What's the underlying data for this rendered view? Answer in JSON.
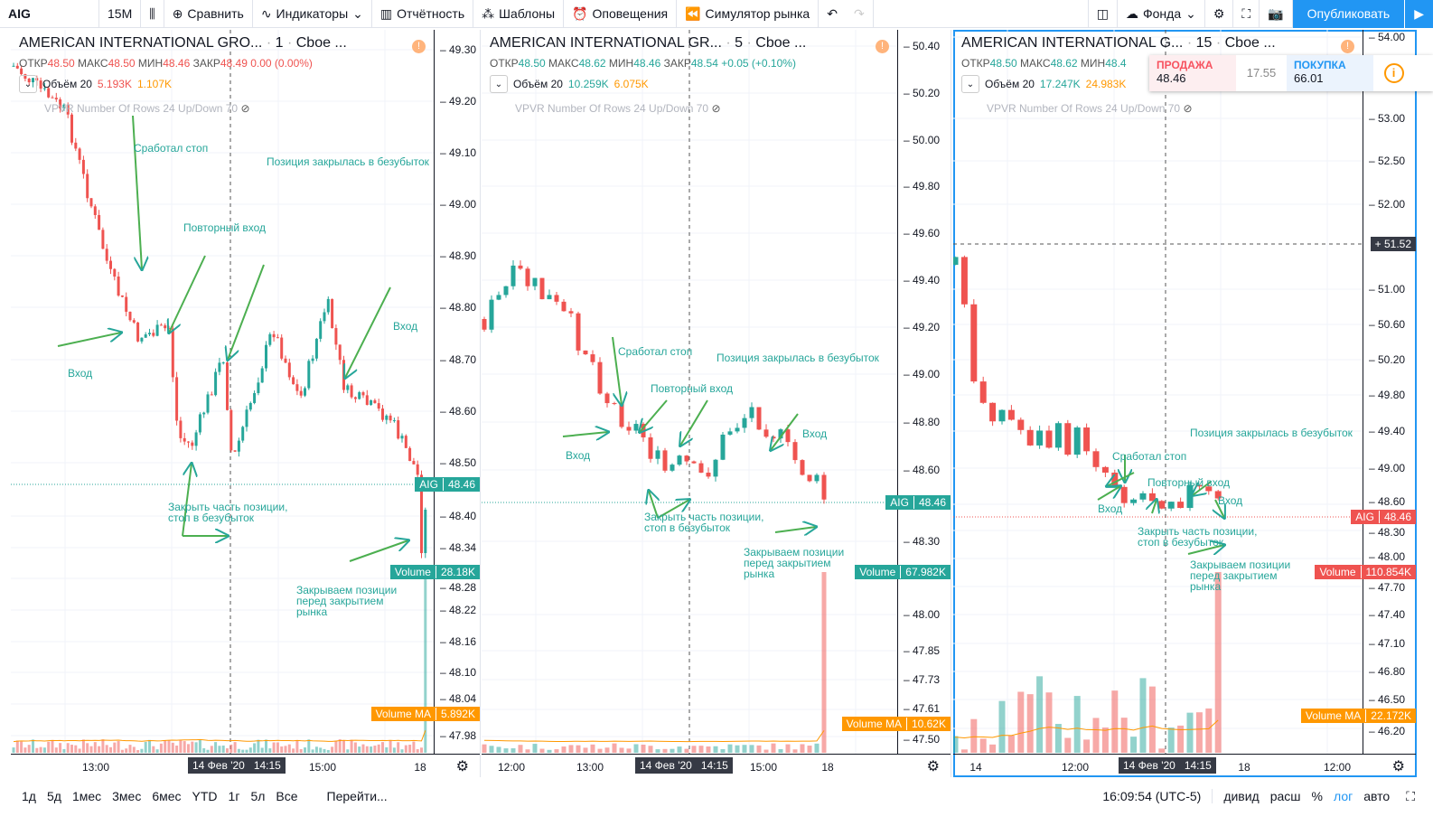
{
  "toolbar": {
    "symbol": "AIG",
    "interval": "15M",
    "compare": "Сравнить",
    "indicators": "Индикаторы",
    "financials": "Отчётность",
    "templates": "Шаблоны",
    "alerts": "Оповещения",
    "replay": "Симулятор рынка",
    "background": "Фонда",
    "publish": "Опубликовать"
  },
  "colors": {
    "up": "#26a69a",
    "down": "#ef5350",
    "accent": "#2196f3",
    "ma": "#ff9800"
  },
  "panels": [
    {
      "title": "AMERICAN INTERNATIONAL GRO...",
      "interval": "1",
      "exchange": "Cboe ...",
      "ohlc": {
        "o": "48.50",
        "h": "48.50",
        "l": "48.46",
        "c": "48.49",
        "chg": "0.00 (0.00%)"
      },
      "ohlc_color": "#ef5350",
      "vol_label": "Объём 20",
      "vol1": "5.193K",
      "vol2": "1.107K",
      "vol1_color": "#ef5350",
      "vpvr": "VPVR Number Of Rows 24 Up/Down 70",
      "ticks": [
        "49.30",
        "49.20",
        "49.10",
        "49.00",
        "48.90",
        "48.80",
        "48.70",
        "48.60",
        "48.50",
        "48.40",
        "48.34",
        "48.28",
        "48.22",
        "48.16",
        "48.10",
        "48.04",
        "47.98"
      ],
      "times": [
        "13:00",
        "15:00",
        "18"
      ],
      "cursor_time": "14 Фев '20   14:15",
      "price_label": {
        "sym": "AIG",
        "val": "48.46"
      },
      "volume_label": {
        "name": "Volume",
        "val": "28.18K"
      },
      "ma_label": {
        "name": "Volume MA",
        "val": "5.892K"
      },
      "annotations": [
        "Сработал стоп",
        "Позиция закрылась в безубыток",
        "Повторный вход",
        "Вход",
        "Вход",
        "Закрыть часть позиции,\nстоп в безубыток",
        "Закрываем позиции\nперед закрытием\nрынка"
      ]
    },
    {
      "title": "AMERICAN INTERNATIONAL GR...",
      "interval": "5",
      "exchange": "Cboe ...",
      "ohlc": {
        "o": "48.50",
        "h": "48.62",
        "l": "48.46",
        "c": "48.54",
        "chg": "+0.05 (+0.10%)"
      },
      "ohlc_color": "#26a69a",
      "vol_label": "Объём 20",
      "vol1": "10.259K",
      "vol2": "6.075K",
      "vol1_color": "#26a69a",
      "vpvr": "VPVR Number Of Rows 24 Up/Down 70",
      "ticks": [
        "50.40",
        "50.20",
        "50.00",
        "49.80",
        "49.60",
        "49.40",
        "49.20",
        "49.00",
        "48.80",
        "48.60",
        "48.30",
        "48.00",
        "47.85",
        "47.73",
        "47.61",
        "47.50"
      ],
      "times": [
        "12:00",
        "13:00",
        "15:00",
        "18"
      ],
      "cursor_time": "14 Фев '20   14:15",
      "price_label": {
        "sym": "AIG",
        "val": "48.46"
      },
      "volume_label": {
        "name": "Volume",
        "val": "67.982K"
      },
      "ma_label": {
        "name": "Volume MA",
        "val": "10.62K"
      },
      "annotations": [
        "Сработал стоп",
        "Позиция закрылась в безубыток",
        "Повторный вход",
        "Вход",
        "Вход",
        "Закрыть часть позиции,\nстоп в безубыток",
        "Закрываем позиции\nперед закрытием\nрынка"
      ]
    },
    {
      "title": "AMERICAN INTERNATIONAL G...",
      "interval": "15",
      "exchange": "Cboe ...",
      "ohlc": {
        "o": "48.50",
        "h": "48.62",
        "l": "48.4",
        "c": "",
        "chg": ""
      },
      "ohlc_color": "#26a69a",
      "vol_label": "Объём 20",
      "vol1": "17.247K",
      "vol2": "24.983K",
      "vol1_color": "#26a69a",
      "vpvr": "VPVR Number Of Rows 24 Up/Down 70",
      "ticks": [
        "54.00",
        "53.00",
        "52.50",
        "52.00",
        "51.00",
        "50.60",
        "50.20",
        "49.80",
        "49.40",
        "49.00",
        "48.60",
        "48.30",
        "48.00",
        "47.70",
        "47.40",
        "47.10",
        "46.80",
        "46.50",
        "46.20"
      ],
      "times": [
        "14",
        "12:00",
        "18",
        "12:00"
      ],
      "cursor_time": "14 Фев '20   14:15",
      "price_label": {
        "sym": "AIG",
        "val": "48.46"
      },
      "volume_label": {
        "name": "Volume",
        "val": "110.854K"
      },
      "ma_label": {
        "name": "Volume MA",
        "val": "22.172K"
      },
      "crosshair_price": "51.52",
      "annotations": [
        "Сработал стоп",
        "Позиция закрылась в безубыток",
        "Повторный вход",
        "Вход",
        "Вход",
        "Закрыть часть позиции,\nстоп в безубыток",
        "Закрываем позиции\nперед закрытием\nрынка"
      ],
      "quote": {
        "sell_label": "ПРОДАЖА",
        "sell": "48.46",
        "spread": "17.55",
        "buy_label": "ПОКУПКА",
        "buy": "66.01"
      }
    }
  ],
  "bottom": {
    "ranges": [
      "1д",
      "5д",
      "1мес",
      "3мес",
      "6мес",
      "YTD",
      "1г",
      "5л",
      "Все"
    ],
    "goto": "Перейти...",
    "clock": "16:09:54 (UTC-5)",
    "opts": [
      "дивид",
      "расш",
      "%",
      "лог",
      "авто"
    ]
  }
}
